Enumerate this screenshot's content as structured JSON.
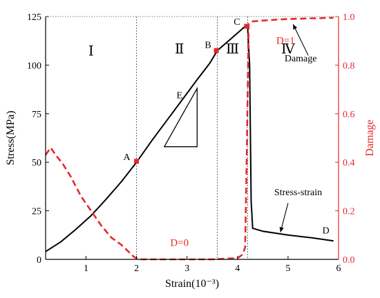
{
  "chart_data": {
    "type": "line",
    "title": "",
    "xlabel": "Strain(10⁻³)",
    "ylabel": "Stress(MPa)",
    "ylabel_right": "Damage",
    "xlim": [
      0.2,
      6
    ],
    "ylim": [
      0,
      125
    ],
    "ylim_right": [
      0,
      1.0
    ],
    "xticks": [
      1,
      2,
      3,
      4,
      5,
      6
    ],
    "yticks": [
      0,
      25,
      50,
      75,
      100,
      125
    ],
    "yticks_right": [
      0.0,
      0.2,
      0.4,
      0.6,
      0.8,
      1.0
    ],
    "grid": false,
    "series": [
      {
        "name": "Stress-strain",
        "axis": "left",
        "color": "#000000",
        "x": [
          0.2,
          0.5,
          0.8,
          1.1,
          1.4,
          1.7,
          2.0,
          2.3,
          2.6,
          2.9,
          3.2,
          3.45,
          3.6,
          3.8,
          4.0,
          4.15,
          4.2,
          4.24,
          4.27,
          4.3,
          4.5,
          5.0,
          5.5,
          5.9
        ],
        "y": [
          4,
          9,
          15.5,
          22.5,
          31,
          40,
          50,
          61,
          71.5,
          82,
          92.5,
          101,
          107.5,
          112,
          116.5,
          120,
          119.5,
          100,
          30,
          16,
          14.5,
          12.5,
          11,
          9.5
        ]
      },
      {
        "name": "Damage",
        "axis": "right",
        "color": "#e8262a",
        "x": [
          0.2,
          0.3,
          0.4,
          0.55,
          0.7,
          0.9,
          1.1,
          1.3,
          1.5,
          1.7,
          1.85,
          1.95,
          2.05,
          2.5,
          3.0,
          3.5,
          4.0,
          4.1,
          4.15,
          4.18,
          4.22,
          4.3,
          4.6,
          5.0,
          5.5,
          5.9
        ],
        "y": [
          0.43,
          0.46,
          0.43,
          0.39,
          0.34,
          0.26,
          0.2,
          0.14,
          0.09,
          0.06,
          0.03,
          0.01,
          0.0,
          0.0,
          0.0,
          0.0,
          0.005,
          0.02,
          0.05,
          0.4,
          0.97,
          0.98,
          0.985,
          0.99,
          0.993,
          0.995
        ]
      }
    ],
    "vlines": [
      2.0,
      3.6,
      4.2
    ],
    "points": [
      {
        "label": "A",
        "x": 2.0,
        "y": 50.5
      },
      {
        "label": "B",
        "x": 3.58,
        "y": 107.5
      },
      {
        "label": "C",
        "x": 4.18,
        "y": 120
      },
      {
        "label": "D",
        "x": 5.75,
        "y": 10.5
      }
    ],
    "regions": [
      {
        "label": "Ⅰ",
        "x": 1.1,
        "y": 105
      },
      {
        "label": "Ⅱ",
        "x": 2.85,
        "y": 106
      },
      {
        "label": "Ⅲ",
        "x": 3.9,
        "y": 106
      },
      {
        "label": "Ⅳ",
        "x": 5.0,
        "y": 106
      }
    ],
    "annotations": [
      {
        "id": "d0",
        "text": "D=0",
        "x": 2.85,
        "y": 7
      },
      {
        "id": "d1",
        "text": "D=1",
        "x": 4.95,
        "y": 111
      },
      {
        "id": "damage",
        "text": "Damage",
        "x": 5.25,
        "y": 102
      },
      {
        "id": "stress",
        "text": "Stress-strain",
        "x": 5.2,
        "y": 33
      },
      {
        "id": "e",
        "text": "E",
        "x": 2.85,
        "y": 83
      }
    ]
  }
}
